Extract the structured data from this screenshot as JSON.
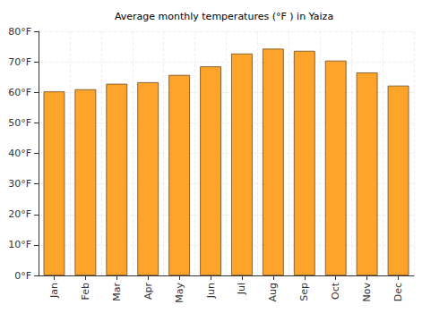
{
  "chart_data": {
    "type": "bar",
    "title": "Average monthly temperatures (°F ) in Yaiza",
    "categories": [
      "Jan",
      "Feb",
      "Mar",
      "Apr",
      "May",
      "Jun",
      "Jul",
      "Aug",
      "Sep",
      "Oct",
      "Nov",
      "Dec"
    ],
    "values": [
      60.3,
      61,
      62.8,
      63.3,
      65.7,
      68.5,
      72.7,
      74.3,
      73.6,
      70.4,
      66.5,
      62.2
    ],
    "color": "#ffa42a",
    "ylim": [
      0,
      80
    ],
    "yticks": [
      {
        "value": 0,
        "label": "0°F"
      },
      {
        "value": 10,
        "label": "10°F"
      },
      {
        "value": 20,
        "label": "20°F"
      },
      {
        "value": 30,
        "label": "30°F"
      },
      {
        "value": 40,
        "label": "40°F"
      },
      {
        "value": 50,
        "label": "50°F"
      },
      {
        "value": 60,
        "label": "60°F"
      },
      {
        "value": 70,
        "label": "70°F"
      },
      {
        "value": 80,
        "label": "80°F"
      }
    ],
    "grid": true
  }
}
